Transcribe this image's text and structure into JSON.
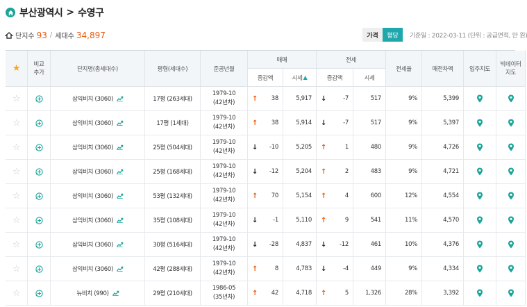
{
  "breadcrumb": {
    "city": "부산광역시",
    "separator": ">",
    "district": "수영구"
  },
  "stats": {
    "complex_label": "단지수",
    "complex_count": "93",
    "separator": "/",
    "household_label": "세대수",
    "household_count": "34,897"
  },
  "toggle": {
    "price_label": "가격",
    "per_pyeong_label": "평당",
    "active": "평당"
  },
  "basis_text": "기준일 : 2022-03-11 (단위 : 공급면적, 만 원)",
  "colors": {
    "accent": "#1fa8ac",
    "increase": "#e8590c",
    "star": "#f5a623",
    "pin": "#1aa49a"
  },
  "table": {
    "headers": {
      "compare": "비교\n추가",
      "complex": "단지명(총세대수)",
      "pyeong": "평형(세대수)",
      "built": "준공년월",
      "sale": "매매",
      "jeonse": "전세",
      "change": "증감액",
      "price": "시세",
      "jeonse_ratio": "전세율",
      "gap": "매전차액",
      "move_in_map": "입주지도",
      "bigdata_map": "빅데이터\n지도"
    },
    "rows": [
      {
        "complex": "삼익비치 (3060)",
        "pyeong": "17평 (263세대)",
        "built_date": "1979-10",
        "built_age": "(42년차)",
        "sale_dir": "up",
        "sale_change": "38",
        "sale_price": "5,917",
        "jeonse_dir": "down",
        "jeonse_change": "-7",
        "jeonse_price": "517",
        "ratio": "9%",
        "gap": "5,399"
      },
      {
        "complex": "삼익비치 (3060)",
        "pyeong": "17평 (1세대)",
        "built_date": "1979-10",
        "built_age": "(42년차)",
        "sale_dir": "up",
        "sale_change": "38",
        "sale_price": "5,914",
        "jeonse_dir": "down",
        "jeonse_change": "-7",
        "jeonse_price": "517",
        "ratio": "9%",
        "gap": "5,397"
      },
      {
        "complex": "삼익비치 (3060)",
        "pyeong": "25평 (504세대)",
        "built_date": "1979-10",
        "built_age": "(42년차)",
        "sale_dir": "down",
        "sale_change": "-10",
        "sale_price": "5,205",
        "jeonse_dir": "up",
        "jeonse_change": "1",
        "jeonse_price": "480",
        "ratio": "9%",
        "gap": "4,726"
      },
      {
        "complex": "삼익비치 (3060)",
        "pyeong": "25평 (168세대)",
        "built_date": "1979-10",
        "built_age": "(42년차)",
        "sale_dir": "down",
        "sale_change": "-12",
        "sale_price": "5,204",
        "jeonse_dir": "up",
        "jeonse_change": "2",
        "jeonse_price": "483",
        "ratio": "9%",
        "gap": "4,721"
      },
      {
        "complex": "삼익비치 (3060)",
        "pyeong": "53평 (132세대)",
        "built_date": "1979-10",
        "built_age": "(42년차)",
        "sale_dir": "up",
        "sale_change": "70",
        "sale_price": "5,154",
        "jeonse_dir": "up",
        "jeonse_change": "4",
        "jeonse_price": "600",
        "ratio": "12%",
        "gap": "4,554"
      },
      {
        "complex": "삼익비치 (3060)",
        "pyeong": "35평 (108세대)",
        "built_date": "1979-10",
        "built_age": "(42년차)",
        "sale_dir": "down",
        "sale_change": "-1",
        "sale_price": "5,110",
        "jeonse_dir": "up",
        "jeonse_change": "9",
        "jeonse_price": "541",
        "ratio": "11%",
        "gap": "4,570"
      },
      {
        "complex": "삼익비치 (3060)",
        "pyeong": "30평 (516세대)",
        "built_date": "1979-10",
        "built_age": "(42년차)",
        "sale_dir": "down",
        "sale_change": "-28",
        "sale_price": "4,837",
        "jeonse_dir": "down",
        "jeonse_change": "-12",
        "jeonse_price": "461",
        "ratio": "10%",
        "gap": "4,376"
      },
      {
        "complex": "삼익비치 (3060)",
        "pyeong": "42평 (288세대)",
        "built_date": "1979-10",
        "built_age": "(42년차)",
        "sale_dir": "up",
        "sale_change": "8",
        "sale_price": "4,783",
        "jeonse_dir": "down",
        "jeonse_change": "-4",
        "jeonse_price": "449",
        "ratio": "9%",
        "gap": "4,334"
      },
      {
        "complex": "뉴비치 (990)",
        "pyeong": "29평 (210세대)",
        "built_date": "1986-05",
        "built_age": "(35년차)",
        "sale_dir": "up",
        "sale_change": "42",
        "sale_price": "4,718",
        "jeonse_dir": "up",
        "jeonse_change": "5",
        "jeonse_price": "1,326",
        "ratio": "28%",
        "gap": "3,392"
      }
    ]
  }
}
